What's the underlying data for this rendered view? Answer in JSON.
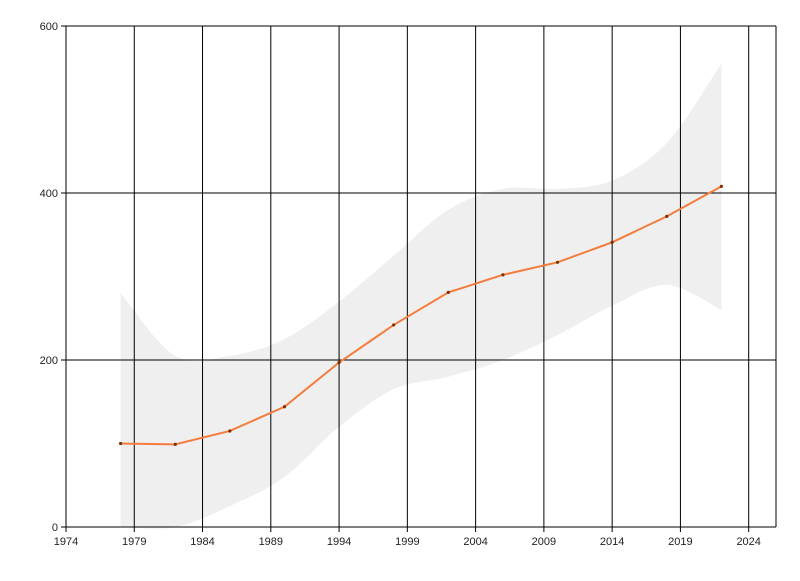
{
  "chart_data": {
    "type": "line",
    "title": "",
    "xlabel": "",
    "ylabel": "",
    "xlim": [
      1974,
      2026
    ],
    "ylim": [
      0,
      600
    ],
    "grid": true,
    "x_ticks": [
      1974,
      1979,
      1984,
      1989,
      1994,
      1999,
      2004,
      2009,
      2014,
      2019,
      2024
    ],
    "y_ticks": [
      0,
      200,
      400,
      600
    ],
    "series": [
      {
        "x": [
          1978,
          1982,
          1986,
          1990,
          1994,
          1998,
          2002,
          2006,
          2010,
          2014,
          2018,
          2022
        ],
        "values": [
          100,
          99,
          115,
          144,
          197,
          242,
          281,
          302,
          317,
          341,
          372,
          408
        ],
        "band_upper": [
          280,
          205,
          205,
          225,
          270,
          325,
          380,
          405,
          405,
          415,
          460,
          555
        ],
        "band_lower": [
          0,
          0,
          25,
          60,
          120,
          165,
          180,
          200,
          230,
          265,
          290,
          260
        ]
      }
    ],
    "colors": {
      "line": "#f47c3c",
      "band": "#efefef",
      "marker": "#7a3000",
      "grid": "#000000"
    }
  }
}
